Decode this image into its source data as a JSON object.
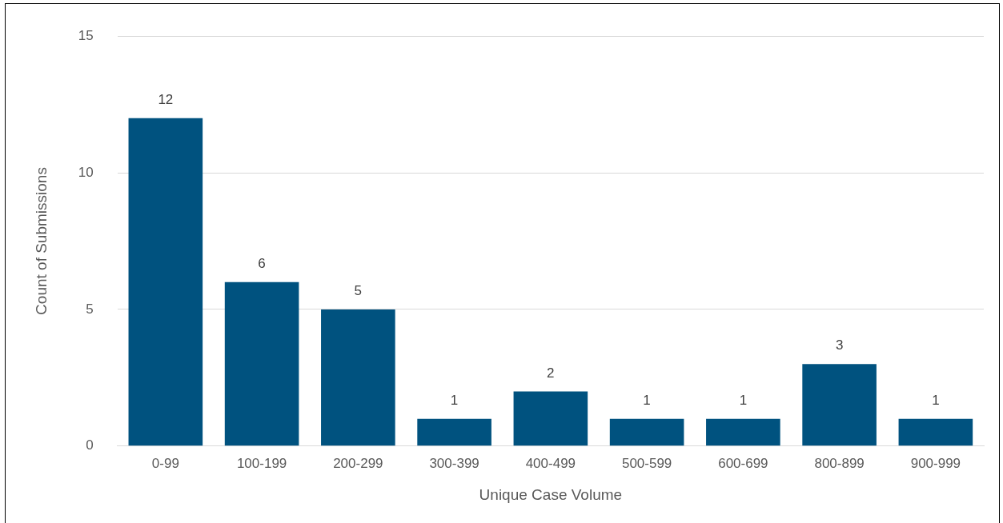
{
  "chart_data": {
    "type": "bar",
    "xlabel": "Unique Case Volume",
    "ylabel": "Count of Submissions",
    "categories": [
      "0-99",
      "100-199",
      "200-299",
      "300-399",
      "400-499",
      "500-599",
      "600-699",
      "800-899",
      "900-999"
    ],
    "values": [
      12,
      6,
      5,
      1,
      2,
      1,
      1,
      3,
      1
    ],
    "color": "#00527f",
    "ylim": [
      0,
      15
    ],
    "yticks": [
      0,
      5,
      10,
      15
    ],
    "grid": "y",
    "data_labels": true,
    "legend": false
  }
}
